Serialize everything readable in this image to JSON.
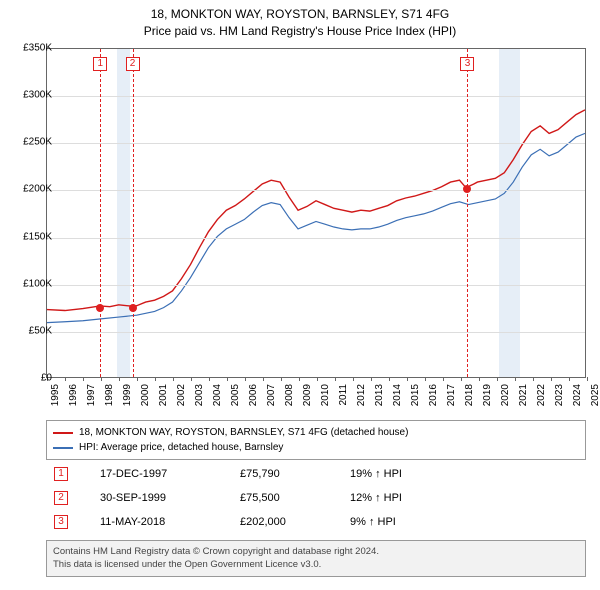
{
  "title": {
    "line1": "18, MONKTON WAY, ROYSTON, BARNSLEY, S71 4FG",
    "line2": "Price paid vs. HM Land Registry's House Price Index (HPI)"
  },
  "chart": {
    "type": "line",
    "background_color": "#ffffff",
    "grid_color": "#dddddd",
    "axis_color": "#666666",
    "ylim": [
      0,
      350000
    ],
    "ytick_step": 50000,
    "y_labels": [
      "£0",
      "£50K",
      "£100K",
      "£150K",
      "£200K",
      "£250K",
      "£300K",
      "£350K"
    ],
    "x_years": [
      1995,
      1996,
      1997,
      1998,
      1999,
      2000,
      2001,
      2002,
      2003,
      2004,
      2005,
      2006,
      2007,
      2008,
      2009,
      2010,
      2011,
      2012,
      2013,
      2014,
      2015,
      2016,
      2017,
      2018,
      2019,
      2020,
      2021,
      2022,
      2023,
      2024,
      2025
    ],
    "bands": [
      {
        "from_year": 1998.9,
        "to_year": 1999.6,
        "color": "#e6eef7"
      },
      {
        "from_year": 2020.1,
        "to_year": 2021.3,
        "color": "#e6eef7"
      }
    ],
    "sale_markers": [
      {
        "num": "1",
        "year": 1997.96,
        "price": 75790
      },
      {
        "num": "2",
        "year": 1999.75,
        "price": 75500
      },
      {
        "num": "3",
        "year": 2018.36,
        "price": 202000
      }
    ],
    "marker_color": "#e02020",
    "series": [
      {
        "name": "property",
        "label": "18, MONKTON WAY, ROYSTON, BARNSLEY, S71 4FG (detached house)",
        "color": "#d01818",
        "width": 1.4,
        "data": [
          [
            1995,
            72000
          ],
          [
            1996,
            71000
          ],
          [
            1997,
            73000
          ],
          [
            1997.96,
            75790
          ],
          [
            1998.5,
            75000
          ],
          [
            1999,
            77000
          ],
          [
            1999.75,
            75500
          ],
          [
            2000,
            76000
          ],
          [
            2000.5,
            80000
          ],
          [
            2001,
            82000
          ],
          [
            2001.5,
            86000
          ],
          [
            2002,
            92000
          ],
          [
            2002.5,
            105000
          ],
          [
            2003,
            120000
          ],
          [
            2003.5,
            138000
          ],
          [
            2004,
            155000
          ],
          [
            2004.5,
            168000
          ],
          [
            2005,
            178000
          ],
          [
            2005.5,
            183000
          ],
          [
            2006,
            190000
          ],
          [
            2006.5,
            198000
          ],
          [
            2007,
            206000
          ],
          [
            2007.5,
            210000
          ],
          [
            2008,
            208000
          ],
          [
            2008.5,
            192000
          ],
          [
            2009,
            178000
          ],
          [
            2009.5,
            182000
          ],
          [
            2010,
            188000
          ],
          [
            2010.5,
            184000
          ],
          [
            2011,
            180000
          ],
          [
            2011.5,
            178000
          ],
          [
            2012,
            176000
          ],
          [
            2012.5,
            178000
          ],
          [
            2013,
            177000
          ],
          [
            2013.5,
            180000
          ],
          [
            2014,
            183000
          ],
          [
            2014.5,
            188000
          ],
          [
            2015,
            191000
          ],
          [
            2015.5,
            193000
          ],
          [
            2016,
            196000
          ],
          [
            2016.5,
            199000
          ],
          [
            2017,
            203000
          ],
          [
            2017.5,
            208000
          ],
          [
            2018,
            210000
          ],
          [
            2018.36,
            202000
          ],
          [
            2018.8,
            206000
          ],
          [
            2019,
            208000
          ],
          [
            2019.5,
            210000
          ],
          [
            2020,
            212000
          ],
          [
            2020.5,
            218000
          ],
          [
            2021,
            232000
          ],
          [
            2021.5,
            248000
          ],
          [
            2022,
            262000
          ],
          [
            2022.5,
            268000
          ],
          [
            2023,
            260000
          ],
          [
            2023.5,
            264000
          ],
          [
            2024,
            272000
          ],
          [
            2024.5,
            280000
          ],
          [
            2025,
            285000
          ]
        ]
      },
      {
        "name": "hpi",
        "label": "HPI: Average price, detached house, Barnsley",
        "color": "#3b6fb5",
        "width": 1.2,
        "data": [
          [
            1995,
            58000
          ],
          [
            1996,
            59000
          ],
          [
            1997,
            60000
          ],
          [
            1998,
            62000
          ],
          [
            1999,
            64000
          ],
          [
            2000,
            66000
          ],
          [
            2000.5,
            68000
          ],
          [
            2001,
            70000
          ],
          [
            2001.5,
            74000
          ],
          [
            2002,
            80000
          ],
          [
            2002.5,
            92000
          ],
          [
            2003,
            106000
          ],
          [
            2003.5,
            122000
          ],
          [
            2004,
            138000
          ],
          [
            2004.5,
            150000
          ],
          [
            2005,
            158000
          ],
          [
            2005.5,
            163000
          ],
          [
            2006,
            168000
          ],
          [
            2006.5,
            176000
          ],
          [
            2007,
            183000
          ],
          [
            2007.5,
            186000
          ],
          [
            2008,
            184000
          ],
          [
            2008.5,
            170000
          ],
          [
            2009,
            158000
          ],
          [
            2009.5,
            162000
          ],
          [
            2010,
            166000
          ],
          [
            2010.5,
            163000
          ],
          [
            2011,
            160000
          ],
          [
            2011.5,
            158000
          ],
          [
            2012,
            157000
          ],
          [
            2012.5,
            158000
          ],
          [
            2013,
            158000
          ],
          [
            2013.5,
            160000
          ],
          [
            2014,
            163000
          ],
          [
            2014.5,
            167000
          ],
          [
            2015,
            170000
          ],
          [
            2015.5,
            172000
          ],
          [
            2016,
            174000
          ],
          [
            2016.5,
            177000
          ],
          [
            2017,
            181000
          ],
          [
            2017.5,
            185000
          ],
          [
            2018,
            187000
          ],
          [
            2018.5,
            184000
          ],
          [
            2019,
            186000
          ],
          [
            2019.5,
            188000
          ],
          [
            2020,
            190000
          ],
          [
            2020.5,
            196000
          ],
          [
            2021,
            208000
          ],
          [
            2021.5,
            224000
          ],
          [
            2022,
            237000
          ],
          [
            2022.5,
            243000
          ],
          [
            2023,
            236000
          ],
          [
            2023.5,
            240000
          ],
          [
            2024,
            248000
          ],
          [
            2024.5,
            256000
          ],
          [
            2025,
            260000
          ]
        ]
      }
    ]
  },
  "legend": {
    "items": [
      {
        "color": "#d01818",
        "text": "18, MONKTON WAY, ROYSTON, BARNSLEY, S71 4FG (detached house)"
      },
      {
        "color": "#3b6fb5",
        "text": "HPI: Average price, detached house, Barnsley"
      }
    ]
  },
  "sales": [
    {
      "num": "1",
      "date": "17-DEC-1997",
      "price": "£75,790",
      "delta": "19% ↑ HPI"
    },
    {
      "num": "2",
      "date": "30-SEP-1999",
      "price": "£75,500",
      "delta": "12% ↑ HPI"
    },
    {
      "num": "3",
      "date": "11-MAY-2018",
      "price": "£202,000",
      "delta": "9% ↑ HPI"
    }
  ],
  "footer": {
    "line1": "Contains HM Land Registry data © Crown copyright and database right 2024.",
    "line2": "This data is licensed under the Open Government Licence v3.0."
  }
}
